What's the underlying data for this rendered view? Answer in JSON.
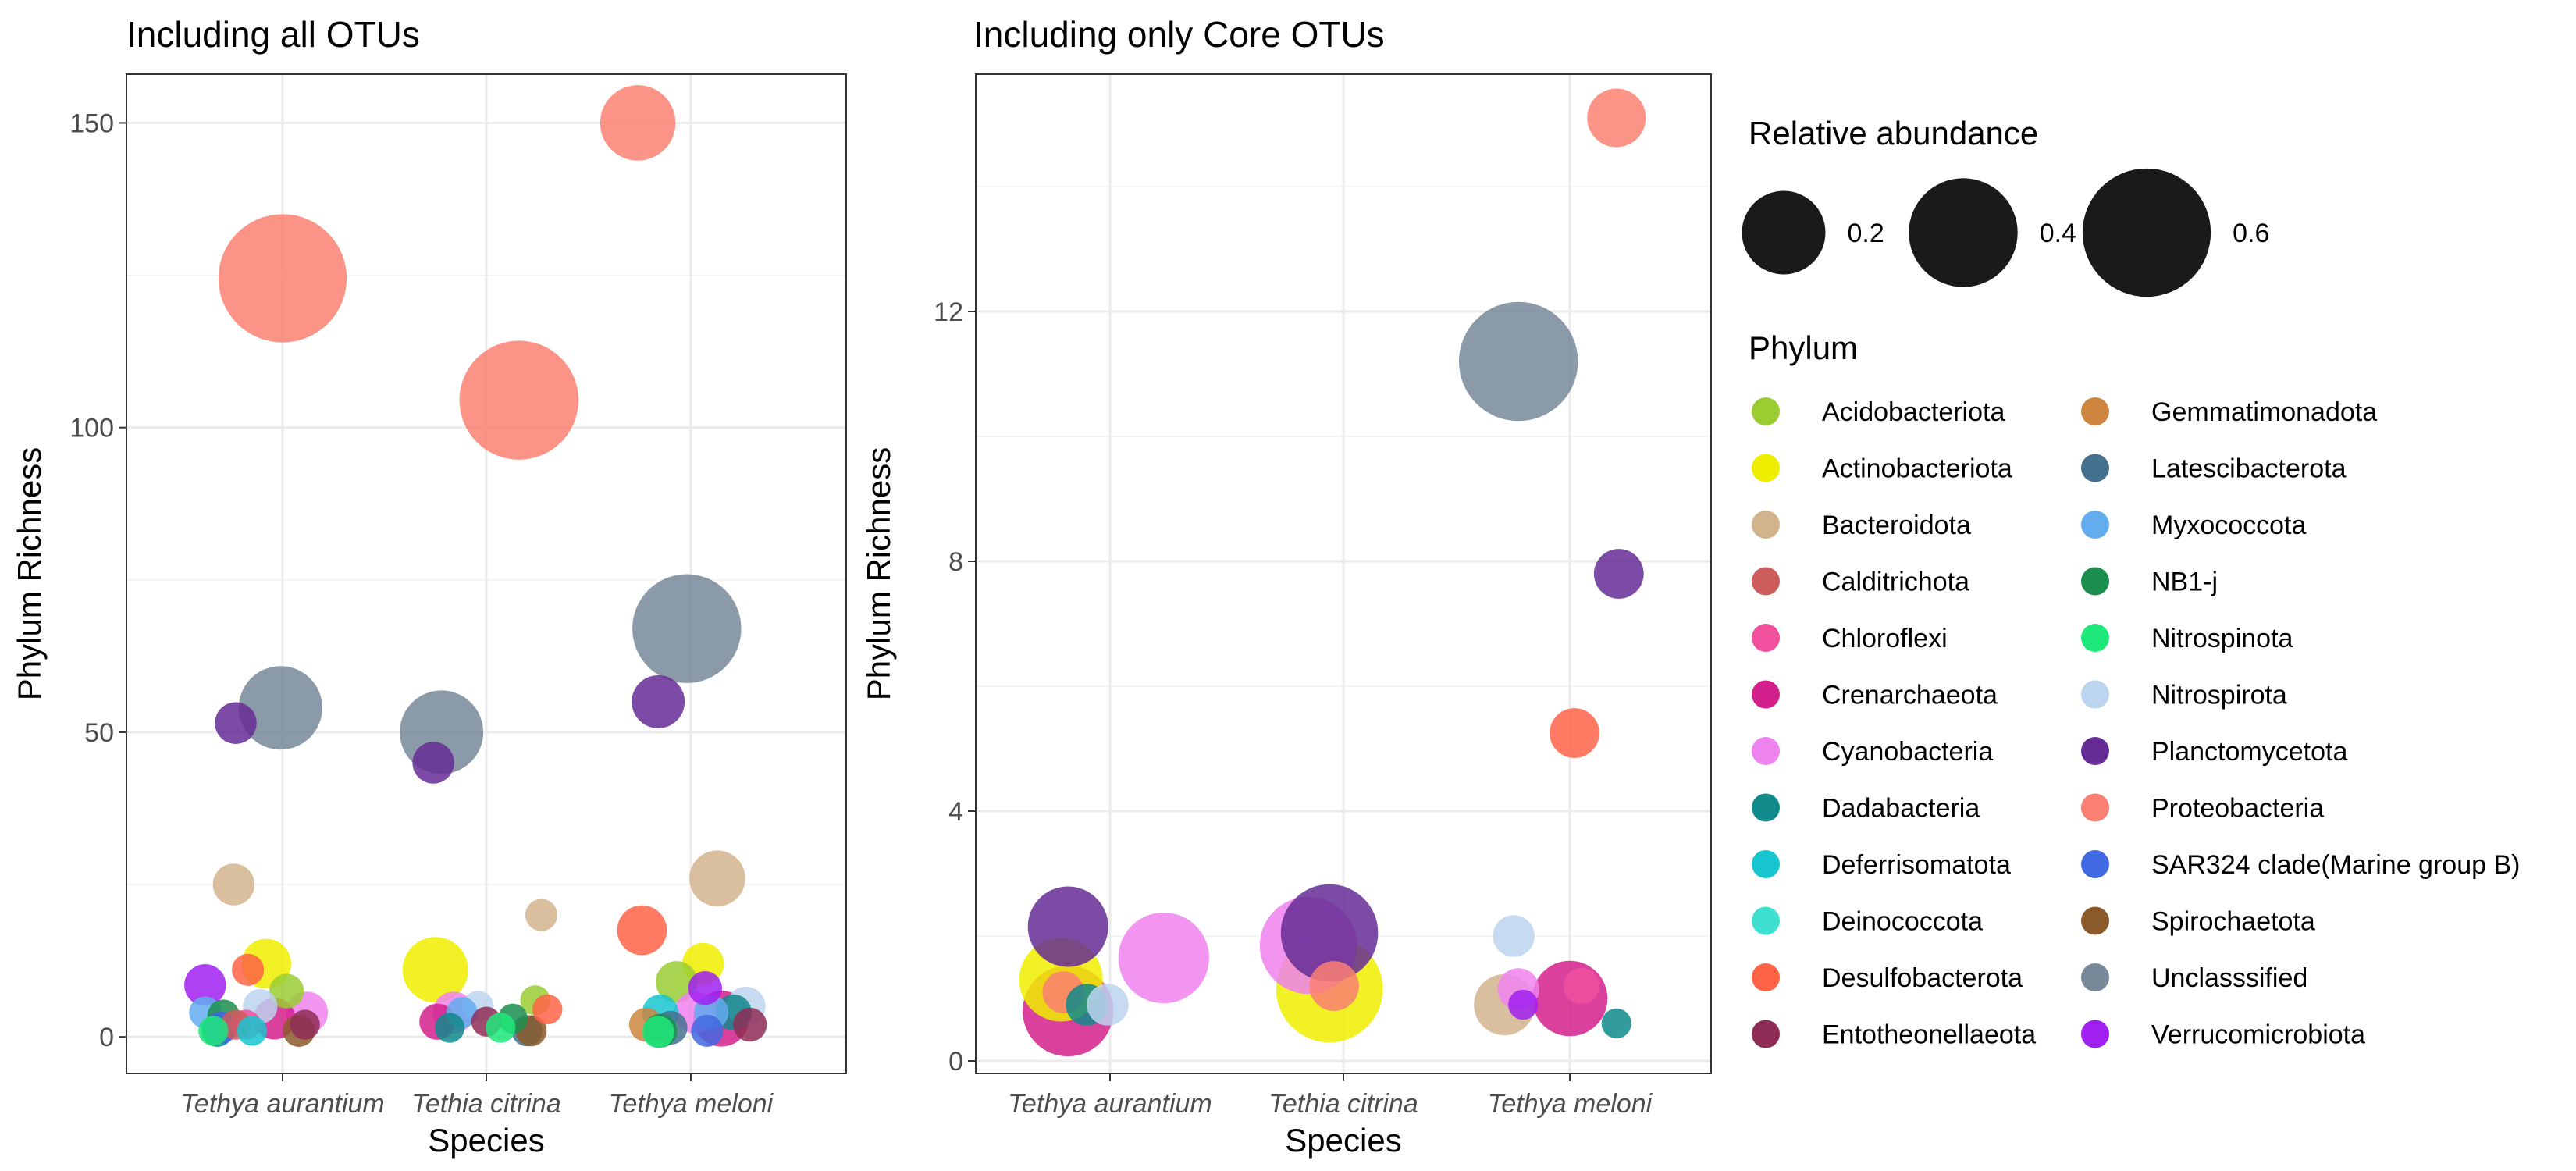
{
  "chart_data": [
    {
      "type": "scatter",
      "title": "Including all OTUs",
      "xlabel": "Species",
      "ylabel": "Phylum Richness",
      "categories": [
        "Tethya aurantium",
        "Tethia citrina",
        "Tethya meloni"
      ],
      "ylim": [
        -6,
        158
      ],
      "yticks": [
        0,
        50,
        100,
        150
      ],
      "grid": true,
      "points": [
        {
          "cat": "Tethya aurantium",
          "jitter": 0.0,
          "y": 124.5,
          "phylum": "Proteobacteria",
          "size": 0.6
        },
        {
          "cat": "Tethya aurantium",
          "jitter": -0.01,
          "y": 54,
          "phylum": "Unclasssified",
          "size": 0.2
        },
        {
          "cat": "Tethya aurantium",
          "jitter": -0.23,
          "y": 51.5,
          "phylum": "Planctomycetota",
          "size": 0.02
        },
        {
          "cat": "Tethya aurantium",
          "jitter": -0.24,
          "y": 25,
          "phylum": "Bacteroidota",
          "size": 0.02
        },
        {
          "cat": "Tethya aurantium",
          "jitter": -0.08,
          "y": 12,
          "phylum": "Actinobacteriota",
          "size": 0.04
        },
        {
          "cat": "Tethya aurantium",
          "jitter": -0.17,
          "y": 11,
          "phylum": "Desulfobacterota",
          "size": 0.005
        },
        {
          "cat": "Tethya aurantium",
          "jitter": -0.38,
          "y": 8.5,
          "phylum": "Verrucomicrobiota",
          "size": 0.02
        },
        {
          "cat": "Tethya aurantium",
          "jitter": 0.02,
          "y": 7.5,
          "phylum": "Acidobacteriota",
          "size": 0.008
        },
        {
          "cat": "Tethya aurantium",
          "jitter": -0.11,
          "y": 5,
          "phylum": "Nitrospirota",
          "size": 0.008
        },
        {
          "cat": "Tethya aurantium",
          "jitter": 0.12,
          "y": 4,
          "phylum": "Cyanobacteria",
          "size": 0.02
        },
        {
          "cat": "Tethya aurantium",
          "jitter": -0.38,
          "y": 4,
          "phylum": "Myxococcota",
          "size": 0.005
        },
        {
          "cat": "Tethya aurantium",
          "jitter": -0.29,
          "y": 3.5,
          "phylum": "NB1-j",
          "size": 0.005
        },
        {
          "cat": "Tethya aurantium",
          "jitter": -0.04,
          "y": 3,
          "phylum": "Crenarchaeota",
          "size": 0.02
        },
        {
          "cat": "Tethya aurantium",
          "jitter": -0.18,
          "y": 2,
          "phylum": "Chloroflexi",
          "size": 0.003
        },
        {
          "cat": "Tethya aurantium",
          "jitter": -0.23,
          "y": 2,
          "phylum": "Calditrichota",
          "size": 0.003
        },
        {
          "cat": "Tethya aurantium",
          "jitter": -0.31,
          "y": 1.5,
          "phylum": "Latescibacterota",
          "size": 0.005
        },
        {
          "cat": "Tethya aurantium",
          "jitter": -0.34,
          "y": 1,
          "phylum": "Nitrospinota",
          "size": 0.003
        },
        {
          "cat": "Tethya aurantium",
          "jitter": -0.32,
          "y": 1,
          "phylum": "Dadabacteria",
          "size": 0.005
        },
        {
          "cat": "Tethya aurantium",
          "jitter": -0.15,
          "y": 1,
          "phylum": "Deferrisomatota",
          "size": 0.003
        },
        {
          "cat": "Tethya aurantium",
          "jitter": -0.3,
          "y": 1.5,
          "phylum": "SAR324 clade(Marine group B)",
          "size": 0.005
        },
        {
          "cat": "Tethya aurantium",
          "jitter": 0.08,
          "y": 1,
          "phylum": "Spirochaetota",
          "size": 0.005
        },
        {
          "cat": "Tethya aurantium",
          "jitter": 0.11,
          "y": 2,
          "phylum": "Entotheonellaeota",
          "size": 0.003
        },
        {
          "cat": "Tethia citrina",
          "jitter": 0.16,
          "y": 104.5,
          "phylum": "Proteobacteria",
          "size": 0.5
        },
        {
          "cat": "Tethia citrina",
          "jitter": -0.22,
          "y": 50,
          "phylum": "Unclasssified",
          "size": 0.2
        },
        {
          "cat": "Tethia citrina",
          "jitter": -0.26,
          "y": 45,
          "phylum": "Planctomycetota",
          "size": 0.02
        },
        {
          "cat": "Tethia citrina",
          "jitter": 0.27,
          "y": 20,
          "phylum": "Bacteroidota",
          "size": 0.005
        },
        {
          "cat": "Tethia citrina",
          "jitter": -0.25,
          "y": 11,
          "phylum": "Actinobacteriota",
          "size": 0.1
        },
        {
          "cat": "Tethia citrina",
          "jitter": 0.24,
          "y": 6,
          "phylum": "Acidobacteriota",
          "size": 0.003
        },
        {
          "cat": "Tethia citrina",
          "jitter": 0.3,
          "y": 4.5,
          "phylum": "Desulfobacterota",
          "size": 0.003
        },
        {
          "cat": "Tethia citrina",
          "jitter": -0.16,
          "y": 4,
          "phylum": "Cyanobacteria",
          "size": 0.02
        },
        {
          "cat": "Tethia citrina",
          "jitter": -0.04,
          "y": 5,
          "phylum": "Nitrospirota",
          "size": 0.004
        },
        {
          "cat": "Tethia citrina",
          "jitter": -0.12,
          "y": 4,
          "phylum": "Myxococcota",
          "size": 0.004
        },
        {
          "cat": "Tethia citrina",
          "jitter": -0.24,
          "y": 2.5,
          "phylum": "Crenarchaeota",
          "size": 0.01
        },
        {
          "cat": "Tethia citrina",
          "jitter": 0.13,
          "y": 3,
          "phylum": "NB1-j",
          "size": 0.003
        },
        {
          "cat": "Tethia citrina",
          "jitter": -0.18,
          "y": 1.5,
          "phylum": "Dadabacteria",
          "size": 0.003
        },
        {
          "cat": "Tethia citrina",
          "jitter": 0.0,
          "y": 2.5,
          "phylum": "Entotheonellaeota",
          "size": 0.003
        },
        {
          "cat": "Tethia citrina",
          "jitter": 0.07,
          "y": 1.5,
          "phylum": "Nitrospinota",
          "size": 0.003
        },
        {
          "cat": "Tethia citrina",
          "jitter": 0.2,
          "y": 1,
          "phylum": "Latescibacterota",
          "size": 0.004
        },
        {
          "cat": "Tethia citrina",
          "jitter": 0.22,
          "y": 1,
          "phylum": "Spirochaetota",
          "size": 0.004
        },
        {
          "cat": "Tethya meloni",
          "jitter": -0.26,
          "y": 150,
          "phylum": "Proteobacteria",
          "size": 0.15
        },
        {
          "cat": "Tethya meloni",
          "jitter": -0.02,
          "y": 67,
          "phylum": "Unclasssified",
          "size": 0.4
        },
        {
          "cat": "Tethya meloni",
          "jitter": -0.16,
          "y": 55,
          "phylum": "Planctomycetota",
          "size": 0.05
        },
        {
          "cat": "Tethya meloni",
          "jitter": 0.13,
          "y": 26,
          "phylum": "Bacteroidota",
          "size": 0.06
        },
        {
          "cat": "Tethya meloni",
          "jitter": -0.24,
          "y": 17.5,
          "phylum": "Desulfobacterota",
          "size": 0.04
        },
        {
          "cat": "Tethya meloni",
          "jitter": 0.06,
          "y": 12,
          "phylum": "Actinobacteriota",
          "size": 0.02
        },
        {
          "cat": "Tethya meloni",
          "jitter": -0.07,
          "y": 9,
          "phylum": "Acidobacteriota",
          "size": 0.02
        },
        {
          "cat": "Tethya meloni",
          "jitter": 0.07,
          "y": 8,
          "phylum": "Verrucomicrobiota",
          "size": 0.007
        },
        {
          "cat": "Tethya meloni",
          "jitter": 0.27,
          "y": 5,
          "phylum": "Nitrospirota",
          "size": 0.015
        },
        {
          "cat": "Tethya meloni",
          "jitter": 0.02,
          "y": 4,
          "phylum": "Cyanobacteria",
          "size": 0.02
        },
        {
          "cat": "Tethya meloni",
          "jitter": -0.15,
          "y": 4,
          "phylum": "Deferrisomatota",
          "size": 0.01
        },
        {
          "cat": "Tethya meloni",
          "jitter": 0.1,
          "y": 4,
          "phylum": "Myxococcota",
          "size": 0.008
        },
        {
          "cat": "Tethya meloni",
          "jitter": 0.15,
          "y": 3,
          "phylum": "Crenarchaeota",
          "size": 0.06
        },
        {
          "cat": "Tethya meloni",
          "jitter": 0.21,
          "y": 4,
          "phylum": "Dadabacteria",
          "size": 0.01
        },
        {
          "cat": "Tethya meloni",
          "jitter": -0.22,
          "y": 2,
          "phylum": "Gemmatimonadota",
          "size": 0.007
        },
        {
          "cat": "Tethya meloni",
          "jitter": -0.1,
          "y": 1.5,
          "phylum": "Latescibacterota",
          "size": 0.007
        },
        {
          "cat": "Tethya meloni",
          "jitter": 0.29,
          "y": 2,
          "phylum": "Entotheonellaeota",
          "size": 0.007
        },
        {
          "cat": "Tethya meloni",
          "jitter": -0.15,
          "y": 1,
          "phylum": "NB1-j",
          "size": 0.007
        },
        {
          "cat": "Tethya meloni",
          "jitter": -0.16,
          "y": 0.8,
          "phylum": "Nitrospinota",
          "size": 0.005
        },
        {
          "cat": "Tethya meloni",
          "jitter": 0.08,
          "y": 1,
          "phylum": "SAR324 clade(Marine group B)",
          "size": 0.005
        }
      ]
    },
    {
      "type": "scatter",
      "title": "Including only Core OTUs",
      "xlabel": "Species",
      "ylabel": "Phylum Richness",
      "categories": [
        "Tethya aurantium",
        "Tethia citrina",
        "Tethya meloni"
      ],
      "ylim": [
        -0.2,
        15.8
      ],
      "yticks": [
        0,
        4,
        8,
        12
      ],
      "grid": true,
      "points": [
        {
          "cat": "Tethya aurantium",
          "jitter": -0.21,
          "y": 1.3,
          "phylum": "Actinobacteriota",
          "size": 0.2
        },
        {
          "cat": "Tethya aurantium",
          "jitter": -0.18,
          "y": 0.8,
          "phylum": "Crenarchaeota",
          "size": 0.25
        },
        {
          "cat": "Tethya aurantium",
          "jitter": -0.2,
          "y": 1.1,
          "phylum": "Proteobacteria",
          "size": 0.02
        },
        {
          "cat": "Tethya aurantium",
          "jitter": -0.18,
          "y": 2.15,
          "phylum": "Planctomycetota",
          "size": 0.18
        },
        {
          "cat": "Tethya aurantium",
          "jitter": 0.23,
          "y": 1.65,
          "phylum": "Cyanobacteria",
          "size": 0.25
        },
        {
          "cat": "Tethya aurantium",
          "jitter": -0.1,
          "y": 0.9,
          "phylum": "Dadabacteria",
          "size": 0.02
        },
        {
          "cat": "Tethya aurantium",
          "jitter": -0.01,
          "y": 0.9,
          "phylum": "Nitrospirota",
          "size": 0.02
        },
        {
          "cat": "Tethia citrina",
          "jitter": -0.15,
          "y": 1.85,
          "phylum": "Cyanobacteria",
          "size": 0.3
        },
        {
          "cat": "Tethia citrina",
          "jitter": -0.06,
          "y": 1.15,
          "phylum": "Actinobacteriota",
          "size": 0.38
        },
        {
          "cat": "Tethia citrina",
          "jitter": -0.06,
          "y": 2.05,
          "phylum": "Planctomycetota",
          "size": 0.3
        },
        {
          "cat": "Tethia citrina",
          "jitter": -0.04,
          "y": 1.2,
          "phylum": "Proteobacteria",
          "size": 0.04
        },
        {
          "cat": "Tethya meloni",
          "jitter": -0.28,
          "y": 0.9,
          "phylum": "Bacteroidota",
          "size": 0.08
        },
        {
          "cat": "Tethya meloni",
          "jitter": -0.22,
          "y": 11.2,
          "phylum": "Unclasssified",
          "size": 0.5
        },
        {
          "cat": "Tethya meloni",
          "jitter": -0.24,
          "y": 2,
          "phylum": "Nitrospirota",
          "size": 0.02
        },
        {
          "cat": "Tethya meloni",
          "jitter": -0.22,
          "y": 1.15,
          "phylum": "Cyanobacteria",
          "size": 0.02
        },
        {
          "cat": "Tethya meloni",
          "jitter": -0.2,
          "y": 0.9,
          "phylum": "Verrucomicrobiota",
          "size": 0.003
        },
        {
          "cat": "Tethya meloni",
          "jitter": 0.0,
          "y": 1.0,
          "phylum": "Crenarchaeota",
          "size": 0.15
        },
        {
          "cat": "Tethya meloni",
          "jitter": 0.05,
          "y": 1.2,
          "phylum": "Chloroflexi",
          "size": 0.01
        },
        {
          "cat": "Tethya meloni",
          "jitter": 0.2,
          "y": 15.1,
          "phylum": "Proteobacteria",
          "size": 0.07
        },
        {
          "cat": "Tethya meloni",
          "jitter": 0.21,
          "y": 7.8,
          "phylum": "Planctomycetota",
          "size": 0.04
        },
        {
          "cat": "Tethya meloni",
          "jitter": 0.02,
          "y": 5.25,
          "phylum": "Desulfobacterota",
          "size": 0.04
        },
        {
          "cat": "Tethya meloni",
          "jitter": 0.2,
          "y": 0.6,
          "phylum": "Dadabacteria",
          "size": 0.003
        }
      ]
    }
  ],
  "legend": {
    "size_title": "Relative abundance",
    "size_entries": [
      {
        "label": "0.2",
        "value": 0.2
      },
      {
        "label": "0.4",
        "value": 0.4
      },
      {
        "label": "0.6",
        "value": 0.6
      }
    ],
    "color_title": "Phylum",
    "phyla": [
      {
        "name": "Acidobacteriota",
        "color": "#9ACD32"
      },
      {
        "name": "Actinobacteriota",
        "color": "#EEEE00"
      },
      {
        "name": "Bacteroidota",
        "color": "#D2B48C"
      },
      {
        "name": "Calditrichota",
        "color": "#CD5C5C"
      },
      {
        "name": "Chloroflexi",
        "color": "#F0509E"
      },
      {
        "name": "Crenarchaeota",
        "color": "#D3208C"
      },
      {
        "name": "Cyanobacteria",
        "color": "#EE82EE"
      },
      {
        "name": "Dadabacteria",
        "color": "#108A8B"
      },
      {
        "name": "Deferrisomatota",
        "color": "#18C6D0"
      },
      {
        "name": "Deinococcota",
        "color": "#40E0D0"
      },
      {
        "name": "Desulfobacterota",
        "color": "#FF6347"
      },
      {
        "name": "Entotheonellaeota",
        "color": "#8F2D56"
      },
      {
        "name": "Gemmatimonadota",
        "color": "#CD853F"
      },
      {
        "name": "Latescibacterota",
        "color": "#45718F"
      },
      {
        "name": "Myxococcota",
        "color": "#63ADEF"
      },
      {
        "name": "NB1-j",
        "color": "#1B8E4E"
      },
      {
        "name": "Nitrospinota",
        "color": "#1EE87A"
      },
      {
        "name": "Nitrospirota",
        "color": "#BCD4EE"
      },
      {
        "name": "Planctomycetota",
        "color": "#652C95"
      },
      {
        "name": "Proteobacteria",
        "color": "#FA8072"
      },
      {
        "name": "SAR324 clade(Marine group B)",
        "color": "#4169E1"
      },
      {
        "name": "Spirochaetota",
        "color": "#8B5A2B"
      },
      {
        "name": "Unclasssified",
        "color": "#778899"
      },
      {
        "name": "Verrucomicrobiota",
        "color": "#A020F0"
      }
    ]
  }
}
